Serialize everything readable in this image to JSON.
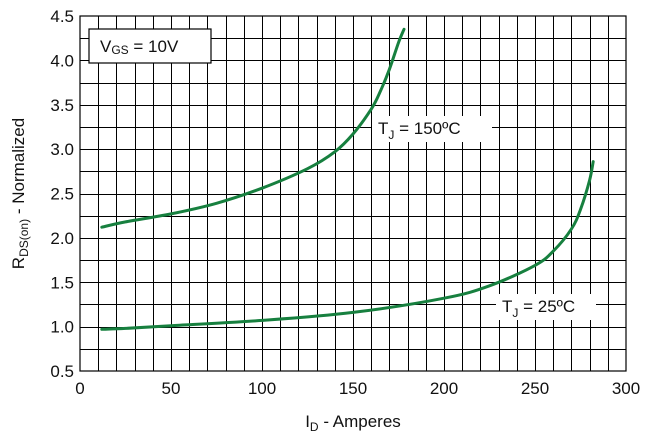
{
  "chart_data": {
    "type": "line",
    "xlabel": {
      "main": "I",
      "sub": "D",
      "rest": " - Amperes"
    },
    "ylabel": {
      "main": "R",
      "sub": "DS(on)",
      "rest": " - Normalized"
    },
    "xlim": [
      0,
      300
    ],
    "ylim": [
      0.5,
      4.5
    ],
    "x_ticks": [
      0,
      50,
      100,
      150,
      200,
      250,
      300
    ],
    "x_tick_labels": [
      "0",
      "50",
      "100",
      "150",
      "200",
      "250",
      "300"
    ],
    "y_ticks": [
      0.5,
      1.0,
      1.5,
      2.0,
      2.5,
      3.0,
      3.5,
      4.0,
      4.5
    ],
    "y_tick_labels": [
      "0.5",
      "1.0",
      "1.5",
      "2.0",
      "2.5",
      "3.0",
      "3.5",
      "4.0",
      "4.5"
    ],
    "x_grid_step": 10,
    "y_grid_step": 0.25,
    "grid": true,
    "condition_box": {
      "main": "V",
      "sub": "GS",
      "rest": " = 10V"
    },
    "series_color": "#17803f",
    "series": [
      {
        "label": {
          "main": "T",
          "sub": "J",
          "rest": " = 150ºC"
        },
        "x": [
          12,
          25,
          50,
          75,
          100,
          125,
          140,
          150,
          160,
          165,
          170,
          175,
          178
        ],
        "y": [
          2.12,
          2.18,
          2.27,
          2.39,
          2.56,
          2.78,
          2.97,
          3.17,
          3.45,
          3.65,
          3.9,
          4.2,
          4.35
        ]
      },
      {
        "label": {
          "main": "T",
          "sub": "J",
          "rest": " = 25ºC"
        },
        "x": [
          12,
          25,
          50,
          100,
          150,
          200,
          225,
          250,
          260,
          270,
          275,
          280,
          282
        ],
        "y": [
          0.97,
          0.98,
          1.01,
          1.07,
          1.16,
          1.32,
          1.46,
          1.69,
          1.85,
          2.1,
          2.32,
          2.65,
          2.86
        ]
      }
    ]
  }
}
